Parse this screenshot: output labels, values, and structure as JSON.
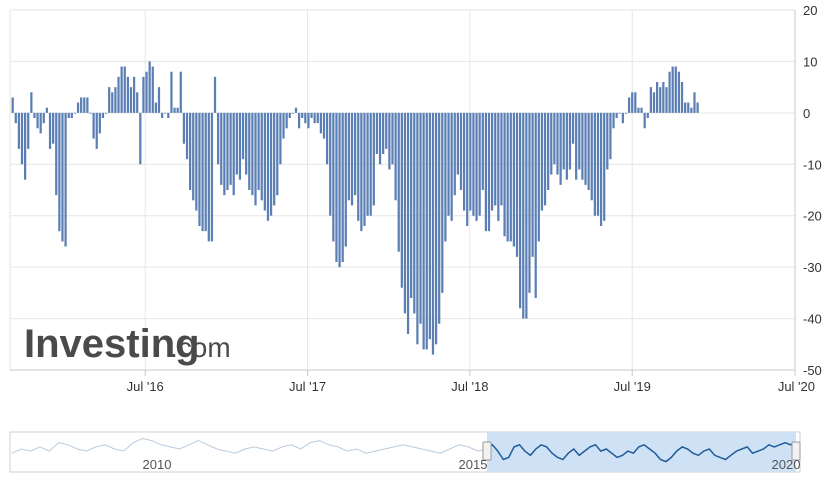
{
  "watermark": {
    "brand": "Investing",
    "suffix": ".com"
  },
  "colors": {
    "bar": "#5b7fb4",
    "bar_edge": "#3f649e",
    "grid": "#e6e6e6",
    "axis": "#c8c8c8",
    "nav_line": "#1f5c99",
    "nav_fill": "#cfe2f5",
    "nav_ghost": "#b9cbe0"
  },
  "chart_data": {
    "type": "bar",
    "xlim": [
      "2015-09",
      "2020-07"
    ],
    "ylim": [
      -50,
      20
    ],
    "y_ticks": [
      20,
      10,
      0,
      -10,
      -20,
      -30,
      -40,
      -50
    ],
    "y_tick_labels": [
      "20",
      "10",
      "0",
      "-10",
      "-20",
      "-30",
      "-40",
      "-50"
    ],
    "x_ticks": [
      "2016-07",
      "2017-07",
      "2018-07",
      "2019-07",
      "2020-07"
    ],
    "x_tick_labels": [
      "Jul '16",
      "Jul '17",
      "Jul '18",
      "Jul '19",
      "Jul '20"
    ],
    "grid": true,
    "frequency": "weekly",
    "start": "2015-09-07",
    "values": [
      3,
      -2,
      -7,
      -10,
      -13,
      -7,
      4,
      -1,
      -3,
      -4,
      -2,
      1,
      -7,
      -6,
      -16,
      -23,
      -25,
      -26,
      -1,
      -1,
      0,
      2,
      3,
      3,
      3,
      0,
      -5,
      -7,
      -4,
      -1,
      0,
      5,
      4,
      5,
      7,
      9,
      9,
      7,
      5,
      7,
      4,
      -10,
      7,
      8,
      10,
      9,
      2,
      5,
      -1,
      0,
      -1,
      8,
      1,
      1,
      8,
      -6,
      -9,
      -15,
      -17,
      -19,
      -22,
      -23,
      -23,
      -25,
      -25,
      7,
      -10,
      -14,
      -16,
      -15,
      -14,
      -16,
      -12,
      -13,
      -9,
      -12,
      -15,
      -16,
      -18,
      -15,
      -17,
      -19,
      -21,
      -20,
      -18,
      -16,
      -10,
      -5,
      -3,
      -1,
      0,
      1,
      -3,
      -1,
      -2,
      -3,
      -1,
      -2,
      -2,
      -4,
      -5,
      -10,
      -20,
      -25,
      -29,
      -30,
      -29,
      -26,
      -17,
      -18,
      -16,
      -21,
      -23,
      -22,
      -20,
      -20,
      -18,
      -8,
      -10,
      -8,
      -7,
      -11,
      -10,
      -17,
      -27,
      -34,
      -39,
      -43,
      -36,
      -39,
      -45,
      -41,
      -46,
      -46,
      -44,
      -47,
      -45,
      -41,
      -35,
      -25,
      -20,
      -21,
      -16,
      -12,
      -15,
      -19,
      -22,
      -19,
      -20,
      -21,
      -20,
      -15,
      -23,
      -23,
      -19,
      -18,
      -21,
      -18,
      -24,
      -25,
      -25,
      -26,
      -28,
      -38,
      -40,
      -40,
      -35,
      -28,
      -36,
      -25,
      -19,
      -18,
      -15,
      -12,
      -10,
      -12,
      -14,
      -11,
      -13,
      -11,
      -6,
      -13,
      -11,
      -13,
      -14,
      -15,
      -17,
      -20,
      -20,
      -22,
      -21,
      -11,
      -9,
      -3,
      -1,
      0,
      -2,
      0,
      3,
      4,
      4,
      1,
      1,
      -3,
      -1,
      5,
      4,
      6,
      5,
      6,
      5,
      8,
      9,
      9,
      8,
      6,
      2,
      2,
      1,
      4,
      2
    ]
  },
  "navigator": {
    "labels": [
      "2010",
      "2015",
      "2020"
    ],
    "ghost_values": [
      8,
      10,
      9,
      11,
      9,
      13,
      12,
      10,
      9,
      11,
      12,
      10,
      9,
      13,
      15,
      14,
      12,
      11,
      10,
      12,
      14,
      12,
      10,
      9,
      8,
      10,
      11,
      10,
      9,
      11,
      12,
      10,
      13,
      14,
      12,
      11,
      9,
      10,
      8,
      9,
      10,
      11,
      12,
      11,
      10,
      9,
      8,
      10,
      12,
      11,
      9,
      10
    ],
    "selected_values": [
      10,
      12,
      9,
      5,
      6,
      11,
      12,
      9,
      7,
      10,
      12,
      11,
      8,
      6,
      5,
      8,
      10,
      7,
      9,
      11,
      12,
      9,
      10,
      8,
      6,
      7,
      9,
      8,
      11,
      12,
      10,
      8,
      5,
      4,
      6,
      9,
      11,
      10,
      8,
      7,
      9,
      10,
      7,
      6,
      5,
      7,
      9,
      10,
      11,
      8,
      9,
      10,
      12,
      11,
      12,
      13,
      12,
      13
    ]
  }
}
